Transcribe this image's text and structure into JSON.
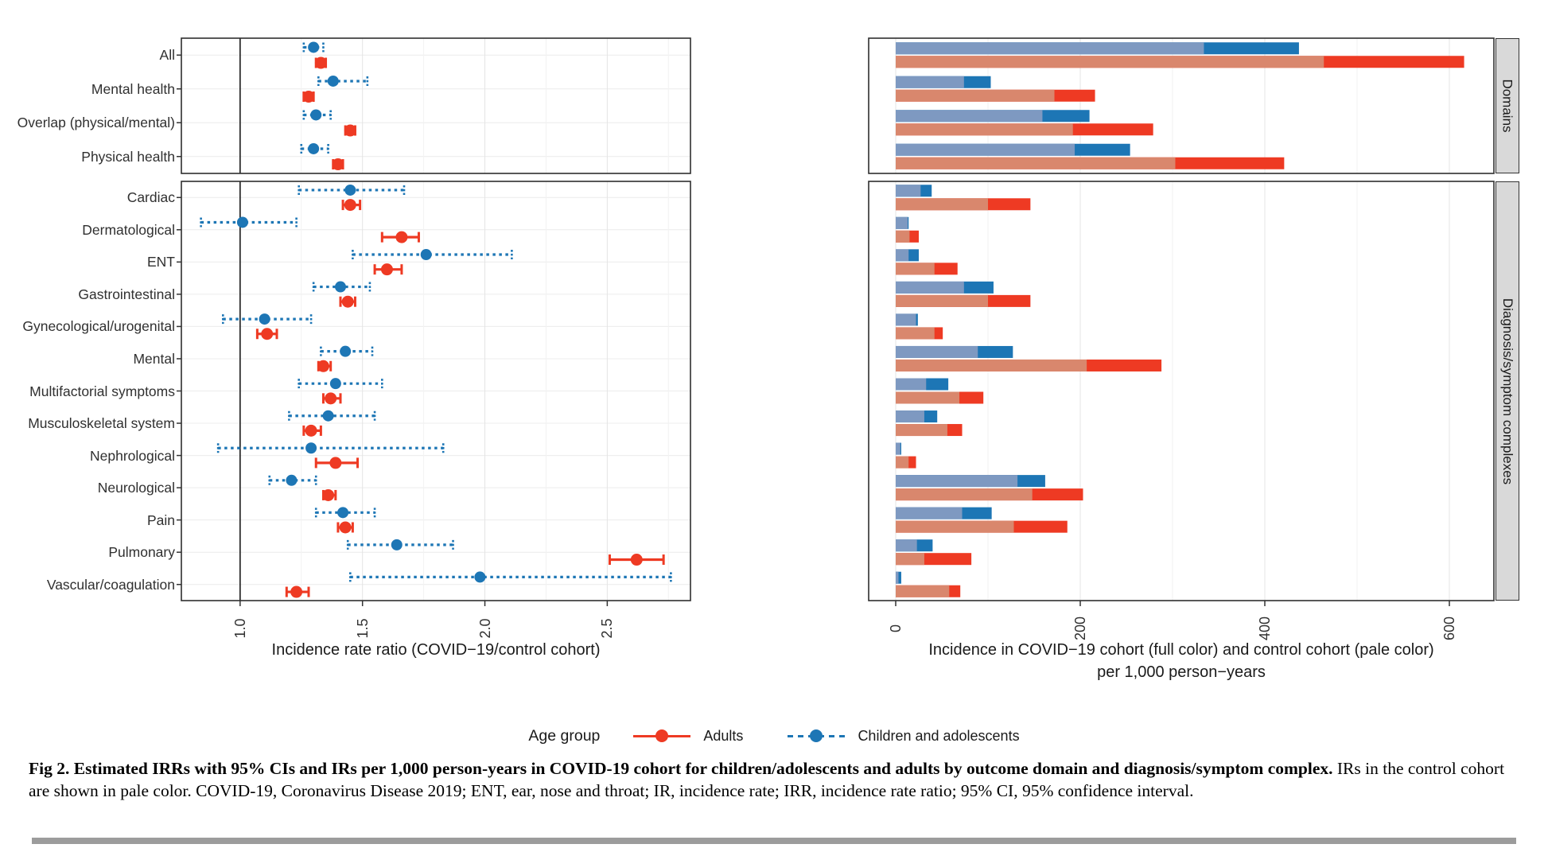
{
  "figure": {
    "caption_bold": "Fig 2.  Estimated IRRs with 95% CIs and IRs per 1,000 person-years in COVID-19 cohort for children/adolescents and adults by outcome domain and diagnosis/symptom complex.",
    "caption_rest": "IRs in the control cohort are shown in pale color. COVID-19, Coronavirus Disease 2019; ENT, ear, nose and throat; IR, incidence rate; IRR, incidence rate ratio; 95% CI, 95% confidence interval."
  },
  "legend": {
    "title": "Age group",
    "adults_label": "Adults",
    "children_label": "Children and adolescents"
  },
  "colors": {
    "adults": "#ee3a23",
    "adults_pale": "#d9876d",
    "children": "#1d76b5",
    "children_pale": "#7e99c1",
    "ref_line": "#1a1a1a",
    "grid_major": "#e4e4e4",
    "grid_minor": "#f2f2f2",
    "row_grid": "#ececec",
    "panel_border": "#2f2f2f",
    "strip_bg": "#d9d9d9",
    "scrollbar": "#9c9c9c"
  },
  "chart_data": {
    "type": "forest+bar",
    "left_axis": {
      "label": "Incidence rate ratio (COVID−19/control cohort)",
      "tick_labels": [
        "1.0",
        "1.5",
        "2.0",
        "2.5"
      ],
      "tick_values": [
        1.0,
        1.5,
        2.0,
        2.5
      ],
      "minor_values": [
        1.25,
        1.75,
        2.25,
        2.75
      ],
      "xlim": [
        0.76,
        2.84
      ],
      "ref_line": 1.0
    },
    "right_axis": {
      "label_line1": "Incidence in COVID−19 cohort (full color) and control cohort (pale color)",
      "label_line2": "per 1,000 person−years",
      "tick_labels": [
        "0",
        "200",
        "400",
        "600"
      ],
      "tick_values": [
        0,
        200,
        400,
        600
      ],
      "minor_values": [
        100,
        300,
        500
      ],
      "xlim": [
        0,
        648
      ]
    },
    "panels": [
      {
        "strip": "Domains",
        "rows": [
          {
            "label": "All",
            "irr": {
              "children": {
                "est": 1.3,
                "lo": 1.26,
                "hi": 1.34
              },
              "adults": {
                "est": 1.33,
                "lo": 1.31,
                "hi": 1.35
              }
            },
            "ir": {
              "children": {
                "control": 334,
                "covid": 437
              },
              "adults": {
                "control": 464,
                "covid": 616
              }
            }
          },
          {
            "label": "Mental health",
            "irr": {
              "children": {
                "est": 1.38,
                "lo": 1.32,
                "hi": 1.52
              },
              "adults": {
                "est": 1.28,
                "lo": 1.26,
                "hi": 1.3
              }
            },
            "ir": {
              "children": {
                "control": 74,
                "covid": 103
              },
              "adults": {
                "control": 172,
                "covid": 216
              }
            }
          },
          {
            "label": "Overlap (physical/mental)",
            "irr": {
              "children": {
                "est": 1.31,
                "lo": 1.26,
                "hi": 1.37
              },
              "adults": {
                "est": 1.45,
                "lo": 1.43,
                "hi": 1.47
              }
            },
            "ir": {
              "children": {
                "control": 159,
                "covid": 210
              },
              "adults": {
                "control": 192,
                "covid": 279
              }
            }
          },
          {
            "label": "Physical health",
            "irr": {
              "children": {
                "est": 1.3,
                "lo": 1.25,
                "hi": 1.36
              },
              "adults": {
                "est": 1.4,
                "lo": 1.38,
                "hi": 1.42
              }
            },
            "ir": {
              "children": {
                "control": 194,
                "covid": 254
              },
              "adults": {
                "control": 303,
                "covid": 421
              }
            }
          }
        ]
      },
      {
        "strip": "Diagnosis/symptom complexes",
        "rows": [
          {
            "label": "Cardiac",
            "irr": {
              "children": {
                "est": 1.45,
                "lo": 1.24,
                "hi": 1.67
              },
              "adults": {
                "est": 1.45,
                "lo": 1.42,
                "hi": 1.49
              }
            },
            "ir": {
              "children": {
                "control": 27,
                "covid": 39
              },
              "adults": {
                "control": 100,
                "covid": 146
              }
            }
          },
          {
            "label": "Dermatological",
            "irr": {
              "children": {
                "est": 1.01,
                "lo": 0.84,
                "hi": 1.23
              },
              "adults": {
                "est": 1.66,
                "lo": 1.58,
                "hi": 1.73
              }
            },
            "ir": {
              "children": {
                "control": 13,
                "covid": 14
              },
              "adults": {
                "control": 15,
                "covid": 25
              }
            }
          },
          {
            "label": "ENT",
            "irr": {
              "children": {
                "est": 1.76,
                "lo": 1.46,
                "hi": 2.11
              },
              "adults": {
                "est": 1.6,
                "lo": 1.55,
                "hi": 1.66
              }
            },
            "ir": {
              "children": {
                "control": 14,
                "covid": 25
              },
              "adults": {
                "control": 42,
                "covid": 67
              }
            }
          },
          {
            "label": "Gastrointestinal",
            "irr": {
              "children": {
                "est": 1.41,
                "lo": 1.3,
                "hi": 1.53
              },
              "adults": {
                "est": 1.44,
                "lo": 1.41,
                "hi": 1.47
              }
            },
            "ir": {
              "children": {
                "control": 74,
                "covid": 106
              },
              "adults": {
                "control": 100,
                "covid": 146
              }
            }
          },
          {
            "label": "Gynecological/urogenital",
            "irr": {
              "children": {
                "est": 1.1,
                "lo": 0.93,
                "hi": 1.29
              },
              "adults": {
                "est": 1.11,
                "lo": 1.07,
                "hi": 1.15
              }
            },
            "ir": {
              "children": {
                "control": 22,
                "covid": 24
              },
              "adults": {
                "control": 42,
                "covid": 51
              }
            }
          },
          {
            "label": "Mental",
            "irr": {
              "children": {
                "est": 1.43,
                "lo": 1.33,
                "hi": 1.54
              },
              "adults": {
                "est": 1.34,
                "lo": 1.32,
                "hi": 1.37
              }
            },
            "ir": {
              "children": {
                "control": 89,
                "covid": 127
              },
              "adults": {
                "control": 207,
                "covid": 288
              }
            }
          },
          {
            "label": "Multifactorial symptoms",
            "irr": {
              "children": {
                "est": 1.39,
                "lo": 1.24,
                "hi": 1.58
              },
              "adults": {
                "est": 1.37,
                "lo": 1.34,
                "hi": 1.41
              }
            },
            "ir": {
              "children": {
                "control": 33,
                "covid": 57
              },
              "adults": {
                "control": 69,
                "covid": 95
              }
            }
          },
          {
            "label": "Musculoskeletal system",
            "irr": {
              "children": {
                "est": 1.36,
                "lo": 1.2,
                "hi": 1.55
              },
              "adults": {
                "est": 1.29,
                "lo": 1.26,
                "hi": 1.33
              }
            },
            "ir": {
              "children": {
                "control": 31,
                "covid": 45
              },
              "adults": {
                "control": 56,
                "covid": 72
              }
            }
          },
          {
            "label": "Nephrological",
            "irr": {
              "children": {
                "est": 1.29,
                "lo": 0.91,
                "hi": 1.83
              },
              "adults": {
                "est": 1.39,
                "lo": 1.31,
                "hi": 1.48
              }
            },
            "ir": {
              "children": {
                "control": 5,
                "covid": 6
              },
              "adults": {
                "control": 14,
                "covid": 22
              }
            }
          },
          {
            "label": "Neurological",
            "irr": {
              "children": {
                "est": 1.21,
                "lo": 1.12,
                "hi": 1.31
              },
              "adults": {
                "est": 1.36,
                "lo": 1.34,
                "hi": 1.39
              }
            },
            "ir": {
              "children": {
                "control": 132,
                "covid": 162
              },
              "adults": {
                "control": 148,
                "covid": 203
              }
            }
          },
          {
            "label": "Pain",
            "irr": {
              "children": {
                "est": 1.42,
                "lo": 1.31,
                "hi": 1.55
              },
              "adults": {
                "est": 1.43,
                "lo": 1.4,
                "hi": 1.46
              }
            },
            "ir": {
              "children": {
                "control": 72,
                "covid": 104
              },
              "adults": {
                "control": 128,
                "covid": 186
              }
            }
          },
          {
            "label": "Pulmonary",
            "irr": {
              "children": {
                "est": 1.64,
                "lo": 1.44,
                "hi": 1.87
              },
              "adults": {
                "est": 2.62,
                "lo": 2.51,
                "hi": 2.73
              }
            },
            "ir": {
              "children": {
                "control": 23,
                "covid": 40
              },
              "adults": {
                "control": 31,
                "covid": 82
              }
            }
          },
          {
            "label": "Vascular/coagulation",
            "irr": {
              "children": {
                "est": 1.98,
                "lo": 1.45,
                "hi": 2.76
              },
              "adults": {
                "est": 1.23,
                "lo": 1.19,
                "hi": 1.28
              }
            },
            "ir": {
              "children": {
                "control": 3,
                "covid": 6
              },
              "adults": {
                "control": 58,
                "covid": 70
              }
            }
          }
        ]
      }
    ]
  }
}
